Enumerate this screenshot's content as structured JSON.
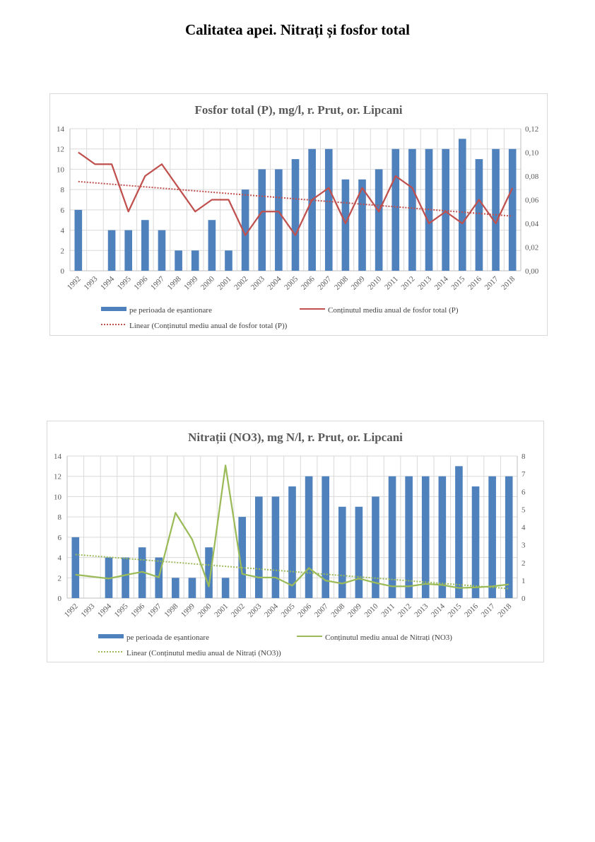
{
  "page": {
    "title": "Calitatea apei. Nitrați și fosfor total"
  },
  "chart_data": [
    {
      "type": "bar+line",
      "title": "Fosfor total (P), mg/l, r. Prut,  or. Lipcani",
      "categories": [
        "1992",
        "1993",
        "1994",
        "1995",
        "1996",
        "1997",
        "1998",
        "1999",
        "2000",
        "2001",
        "2002",
        "2003",
        "2004",
        "2005",
        "2006",
        "2007",
        "2008",
        "2009",
        "2010",
        "2011",
        "2012",
        "2013",
        "2014",
        "2015",
        "2016",
        "2017",
        "2018"
      ],
      "left_axis": {
        "min": 0,
        "max": 14,
        "step": 2,
        "ticks": [
          "0",
          "2",
          "4",
          "6",
          "8",
          "10",
          "12",
          "14"
        ]
      },
      "right_axis": {
        "min": 0,
        "max": 0.12,
        "step": 0.02,
        "ticks": [
          "0,00",
          "0,02",
          "0,04",
          "0,06",
          "0,08",
          "0,10",
          "0,12"
        ]
      },
      "series": [
        {
          "name": "pe perioada de eșantionare",
          "type": "bar",
          "axis": "left",
          "color": "#4f81bd",
          "values": [
            6,
            0,
            4,
            4,
            5,
            4,
            2,
            2,
            5,
            2,
            8,
            10,
            10,
            11,
            12,
            12,
            9,
            9,
            10,
            12,
            12,
            12,
            12,
            13,
            11,
            12,
            12
          ]
        },
        {
          "name": "Conținutul mediu anual de fosfor total (P)",
          "type": "line",
          "axis": "right",
          "color": "#c0504d",
          "values": [
            0.1,
            0.09,
            0.09,
            0.05,
            0.08,
            0.09,
            0.07,
            0.05,
            0.06,
            0.06,
            0.03,
            0.05,
            0.05,
            0.03,
            0.06,
            0.07,
            0.04,
            0.07,
            0.05,
            0.08,
            0.07,
            0.04,
            0.05,
            0.04,
            0.06,
            0.04,
            0.07
          ]
        },
        {
          "name": "Linear (Conținutul mediu anual de fosfor total (P))",
          "type": "trendline",
          "axis": "right",
          "color": "#c0504d"
        }
      ],
      "grid": true,
      "legend": "bottom"
    },
    {
      "type": "bar+line",
      "title": "Nitrații (NO3), mg N/l, r. Prut,  or. Lipcani",
      "categories": [
        "1992",
        "1993",
        "1994",
        "1995",
        "1996",
        "1997",
        "1998",
        "1999",
        "2000",
        "2001",
        "2002",
        "2003",
        "2004",
        "2005",
        "2006",
        "2007",
        "2008",
        "2009",
        "2010",
        "2011",
        "2012",
        "2013",
        "2014",
        "2015",
        "2016",
        "2017",
        "2018"
      ],
      "left_axis": {
        "min": 0,
        "max": 14,
        "step": 2,
        "ticks": [
          "0",
          "2",
          "4",
          "6",
          "8",
          "10",
          "12",
          "14"
        ]
      },
      "right_axis": {
        "min": 0,
        "max": 8,
        "step": 1,
        "ticks": [
          "0",
          "1",
          "2",
          "3",
          "4",
          "5",
          "6",
          "7",
          "8"
        ]
      },
      "series": [
        {
          "name": "pe perioada de eșantionare",
          "type": "bar",
          "axis": "left",
          "color": "#4f81bd",
          "values": [
            6,
            0,
            4,
            4,
            5,
            4,
            2,
            2,
            5,
            2,
            8,
            10,
            10,
            11,
            12,
            12,
            9,
            9,
            10,
            12,
            12,
            12,
            12,
            13,
            11,
            12,
            12
          ]
        },
        {
          "name": "Conținutul mediu anual de Nitrați (NO3)",
          "type": "line",
          "axis": "right",
          "color": "#9bbb59",
          "values": [
            1.32,
            null,
            1.1,
            1.3,
            1.48,
            1.17,
            4.8,
            3.3,
            0.66,
            7.47,
            1.36,
            1.16,
            1.16,
            0.7,
            1.69,
            0.99,
            0.82,
            1.1,
            0.86,
            0.66,
            0.66,
            0.8,
            0.74,
            0.57,
            0.6,
            0.66,
            0.77
          ]
        },
        {
          "name": "Linear (Conținutul mediu anual de Nitrați (NO3))",
          "type": "trendline",
          "axis": "right",
          "color": "#9bbb59"
        }
      ],
      "grid": true,
      "legend": "bottom"
    }
  ]
}
